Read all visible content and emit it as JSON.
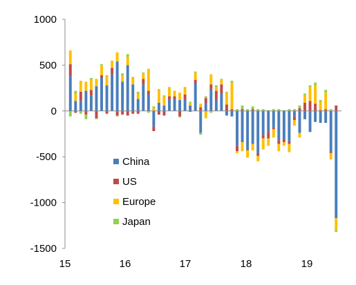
{
  "chart_data": {
    "type": "bar",
    "stacked": true,
    "x_ticks": [
      "15",
      "16",
      "17",
      "18",
      "19"
    ],
    "y_ticks": [
      "1000",
      "500",
      "0",
      "-500",
      "-1000",
      "-1500"
    ],
    "ylim": [
      -1500,
      1000
    ],
    "grid": false,
    "legend_position": "center-left",
    "colors": {
      "China": "#4a7ebb",
      "US": "#be4b48",
      "Europe": "#ffc000",
      "Japan": "#92d050"
    },
    "series": [
      {
        "name": "China",
        "values": [
          380,
          110,
          110,
          220,
          170,
          270,
          360,
          280,
          400,
          540,
          320,
          500,
          290,
          130,
          290,
          180,
          -170,
          90,
          60,
          120,
          130,
          120,
          120,
          60,
          300,
          -240,
          80,
          240,
          120,
          190,
          -50,
          -60,
          -380,
          -340,
          -420,
          -360,
          -460,
          -260,
          -230,
          -180,
          -320,
          -310,
          -340,
          -60,
          -240,
          -90,
          -230,
          -120,
          -130,
          -130,
          -440,
          -1170
        ]
      },
      {
        "name": "US",
        "values": [
          130,
          -20,
          100,
          -40,
          60,
          -80,
          30,
          -30,
          70,
          -50,
          -40,
          -50,
          -30,
          -30,
          60,
          40,
          -50,
          -40,
          -50,
          40,
          30,
          -60,
          60,
          -10,
          40,
          40,
          60,
          50,
          100,
          100,
          70,
          20,
          -60,
          20,
          -10,
          20,
          -30,
          -40,
          -70,
          -20,
          -40,
          -30,
          -20,
          -40,
          30,
          90,
          110,
          80,
          10,
          20,
          -20,
          60
        ]
      },
      {
        "name": "Europe",
        "values": [
          150,
          80,
          120,
          100,
          110,
          80,
          110,
          100,
          80,
          100,
          70,
          90,
          70,
          60,
          60,
          240,
          30,
          150,
          100,
          90,
          60,
          80,
          70,
          30,
          80,
          40,
          -80,
          110,
          40,
          50,
          130,
          290,
          -20,
          -100,
          -80,
          -70,
          -60,
          -120,
          -80,
          -90,
          -80,
          -40,
          -90,
          -60,
          -50,
          80,
          150,
          200,
          90,
          180,
          -70,
          -130
        ]
      },
      {
        "name": "Japan",
        "values": [
          -60,
          30,
          -30,
          -50,
          20,
          -10,
          10,
          10,
          0,
          -10,
          20,
          30,
          10,
          20,
          10,
          -20,
          20,
          0,
          10,
          10,
          0,
          -10,
          10,
          10,
          10,
          -20,
          20,
          -20,
          20,
          10,
          10,
          20,
          20,
          40,
          20,
          30,
          20,
          20,
          10,
          20,
          20,
          10,
          20,
          20,
          30,
          20,
          20,
          30,
          20,
          30,
          20,
          -20
        ]
      }
    ]
  }
}
